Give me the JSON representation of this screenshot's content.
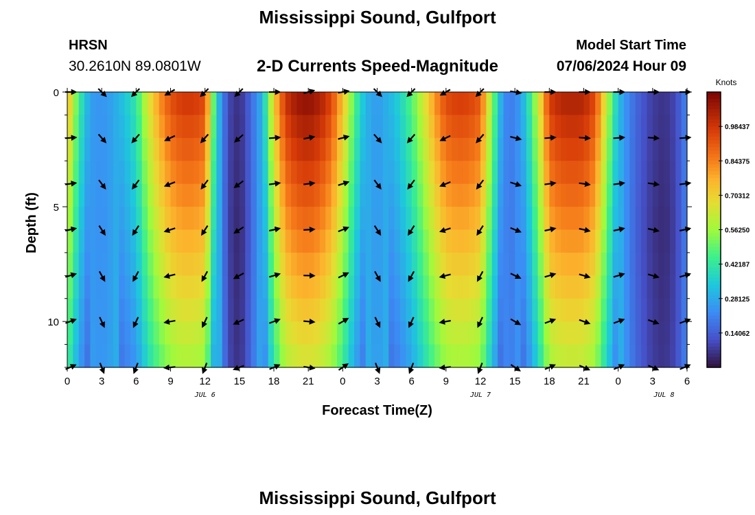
{
  "header": {
    "title": "Mississippi Sound, Gulfport",
    "station": "HRSN",
    "coords": "30.2610N  89.0801W",
    "plot_title": "2-D Currents Speed-Magnitude",
    "model_label": "Model Start Time",
    "model_time": "07/06/2024 Hour 09"
  },
  "footer": {
    "title": "Mississippi Sound, Gulfport"
  },
  "chart_data": {
    "type": "heatmap",
    "title": "2-D Currents Speed-Magnitude",
    "xlabel": "Forecast Time(Z)",
    "ylabel": "Depth (ft)",
    "x_ticks": [
      "0",
      "3",
      "6",
      "9",
      "12",
      "15",
      "18",
      "21",
      "0",
      "3",
      "6",
      "9",
      "12",
      "15",
      "18",
      "21",
      "0",
      "3",
      "6"
    ],
    "x_range_hours": [
      0,
      54
    ],
    "date_labels": [
      {
        "label": "JUL 6",
        "hour": 12
      },
      {
        "label": "JUL 7",
        "hour": 36
      },
      {
        "label": "JUL 8",
        "hour": 52
      }
    ],
    "y_ticks": [
      "0",
      "5",
      "10"
    ],
    "y_range_ft": [
      0,
      12
    ],
    "y_inverted": true,
    "colorbar": {
      "unit": "Knots",
      "min": 0.0,
      "max": 1.125,
      "tick_labels": [
        "0.98437",
        "0.84375",
        "0.70312",
        "0.56250",
        "0.42187",
        "0.28125",
        "0.14062"
      ],
      "tick_values": [
        0.98437,
        0.84375,
        0.70312,
        0.5625,
        0.42187,
        0.28125,
        0.14062
      ],
      "colormap": "turbo"
    },
    "surface_speed_knots": [
      {
        "hour": 0,
        "speed": 0.78
      },
      {
        "hour": 1,
        "speed": 0.45
      },
      {
        "hour": 2,
        "speed": 0.26
      },
      {
        "hour": 3,
        "speed": 0.24
      },
      {
        "hour": 4,
        "speed": 0.27
      },
      {
        "hour": 5,
        "speed": 0.34
      },
      {
        "hour": 6,
        "speed": 0.42
      },
      {
        "hour": 7,
        "speed": 0.65
      },
      {
        "hour": 8,
        "speed": 0.82
      },
      {
        "hour": 9,
        "speed": 0.94
      },
      {
        "hour": 10,
        "speed": 0.99
      },
      {
        "hour": 11,
        "speed": 0.99
      },
      {
        "hour": 12,
        "speed": 0.95
      },
      {
        "hour": 13,
        "speed": 0.35
      },
      {
        "hour": 14,
        "speed": 0.1
      },
      {
        "hour": 15,
        "speed": 0.05
      },
      {
        "hour": 16,
        "speed": 0.16
      },
      {
        "hour": 17,
        "speed": 0.3
      },
      {
        "hour": 18,
        "speed": 0.72
      },
      {
        "hour": 19,
        "speed": 1.0
      },
      {
        "hour": 20,
        "speed": 1.08
      },
      {
        "hour": 21,
        "speed": 1.1
      },
      {
        "hour": 22,
        "speed": 1.06
      },
      {
        "hour": 23,
        "speed": 0.96
      },
      {
        "hour": 24,
        "speed": 0.75
      },
      {
        "hour": 25,
        "speed": 0.48
      },
      {
        "hour": 26,
        "speed": 0.3
      },
      {
        "hour": 27,
        "speed": 0.25
      },
      {
        "hour": 28,
        "speed": 0.3
      },
      {
        "hour": 29,
        "speed": 0.37
      },
      {
        "hour": 30,
        "speed": 0.48
      },
      {
        "hour": 31,
        "speed": 0.64
      },
      {
        "hour": 32,
        "speed": 0.82
      },
      {
        "hour": 33,
        "speed": 0.95
      },
      {
        "hour": 34,
        "speed": 0.98
      },
      {
        "hour": 35,
        "speed": 0.97
      },
      {
        "hour": 36,
        "speed": 0.92
      },
      {
        "hour": 37,
        "speed": 0.55
      },
      {
        "hour": 38,
        "speed": 0.22
      },
      {
        "hour": 39,
        "speed": 0.2
      },
      {
        "hour": 40,
        "speed": 0.35
      },
      {
        "hour": 41,
        "speed": 0.62
      },
      {
        "hour": 42,
        "speed": 0.98
      },
      {
        "hour": 43,
        "speed": 1.04
      },
      {
        "hour": 44,
        "speed": 1.05
      },
      {
        "hour": 45,
        "speed": 1.04
      },
      {
        "hour": 46,
        "speed": 0.95
      },
      {
        "hour": 47,
        "speed": 0.62
      },
      {
        "hour": 48,
        "speed": 0.32
      },
      {
        "hour": 49,
        "speed": 0.2
      },
      {
        "hour": 50,
        "speed": 0.13
      },
      {
        "hour": 51,
        "speed": 0.08
      },
      {
        "hour": 52,
        "speed": 0.06
      },
      {
        "hour": 53,
        "speed": 0.1
      },
      {
        "hour": 54,
        "speed": 0.22
      }
    ],
    "arrow_rows_ft": [
      0,
      2,
      4,
      6,
      8,
      10,
      12
    ],
    "arrow_hours": [
      0,
      3,
      6,
      9,
      12,
      15,
      18,
      21,
      24,
      27,
      30,
      33,
      36,
      39,
      42,
      45,
      48,
      51,
      54
    ],
    "surface_arrow_direction_deg": [
      90,
      135,
      225,
      240,
      225,
      225,
      90,
      75,
      80,
      135,
      225,
      240,
      225,
      100,
      90,
      90,
      90,
      90,
      90
    ]
  }
}
